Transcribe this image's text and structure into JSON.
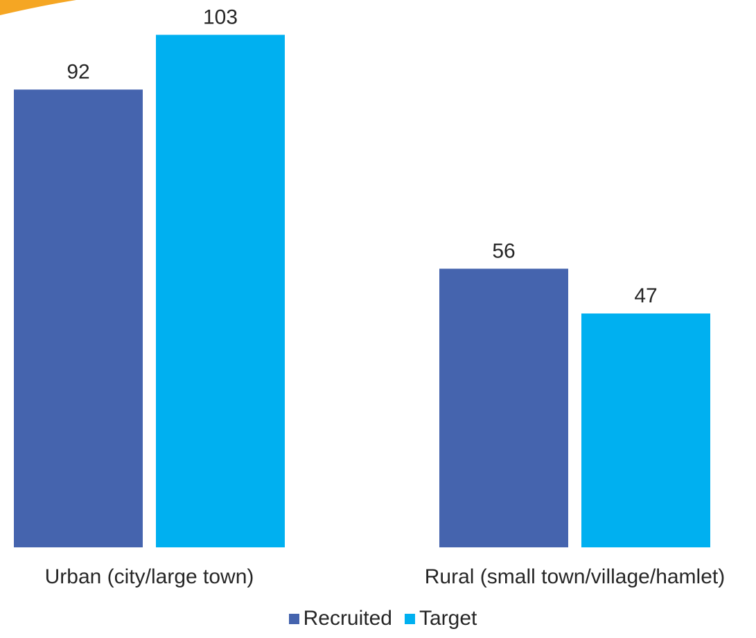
{
  "chart_data": {
    "type": "bar",
    "title": "",
    "xlabel": "",
    "ylabel": "",
    "categories": [
      "Urban (city/large town)",
      "Rural (small town/village/hamlet)"
    ],
    "series": [
      {
        "name": "Recruited",
        "values": [
          92,
          56
        ],
        "color": "#4564AE"
      },
      {
        "name": "Target",
        "values": [
          103,
          47
        ],
        "color": "#00B0F0"
      }
    ],
    "ylim": [
      0,
      110
    ],
    "grid": false,
    "legend_position": "bottom",
    "data_labels": true
  },
  "accent": {
    "corner_decoration_color": "#F5A623"
  }
}
